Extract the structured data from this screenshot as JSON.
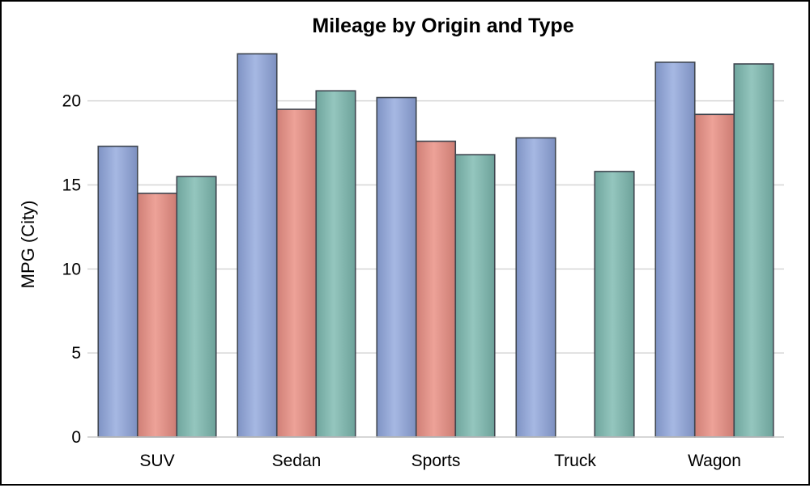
{
  "chart_data": {
    "type": "bar",
    "title": "Mileage by Origin and Type",
    "xlabel": "",
    "ylabel": "MPG (City)",
    "categories": [
      "SUV",
      "Sedan",
      "Sports",
      "Truck",
      "Wagon"
    ],
    "series": [
      {
        "values": [
          17.3,
          22.8,
          20.2,
          17.8,
          22.3
        ],
        "color": "#9aaedb"
      },
      {
        "values": [
          14.5,
          19.5,
          17.6,
          null,
          19.2
        ],
        "color": "#e5968c"
      },
      {
        "values": [
          15.5,
          20.6,
          16.8,
          15.8,
          22.2
        ],
        "color": "#88bdb5"
      }
    ],
    "ylim": [
      0,
      23.5
    ],
    "yticks": [
      0,
      5,
      10,
      15,
      20
    ],
    "grid": true,
    "legend": "none"
  }
}
